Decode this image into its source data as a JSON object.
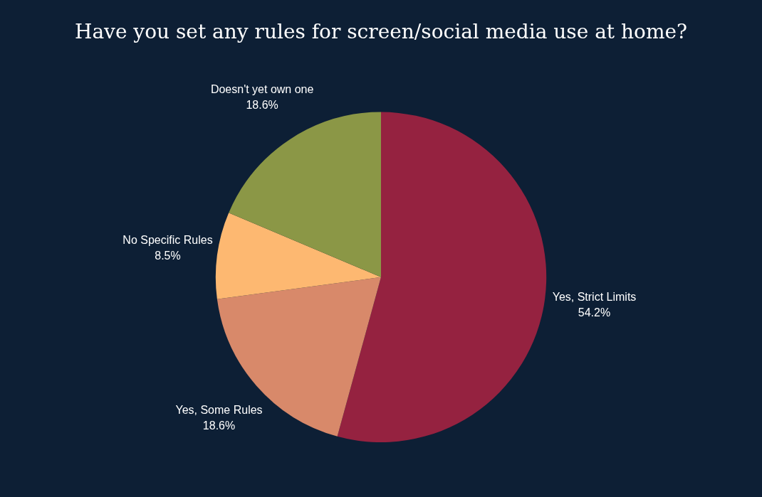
{
  "chart_data": {
    "type": "pie",
    "title": "Have you set any rules for screen/social media use at home?",
    "categories": [
      "Yes, Strict Limits",
      "Yes, Some Rules",
      "No Specific Rules",
      "Doesn't yet own one"
    ],
    "values": [
      54.2,
      18.6,
      8.5,
      18.6
    ],
    "value_labels": [
      "54.2%",
      "18.6%",
      "8.5%",
      "18.6%"
    ],
    "colors": [
      "#952240",
      "#d8896a",
      "#fdb871",
      "#8b9746"
    ],
    "legend": false
  }
}
